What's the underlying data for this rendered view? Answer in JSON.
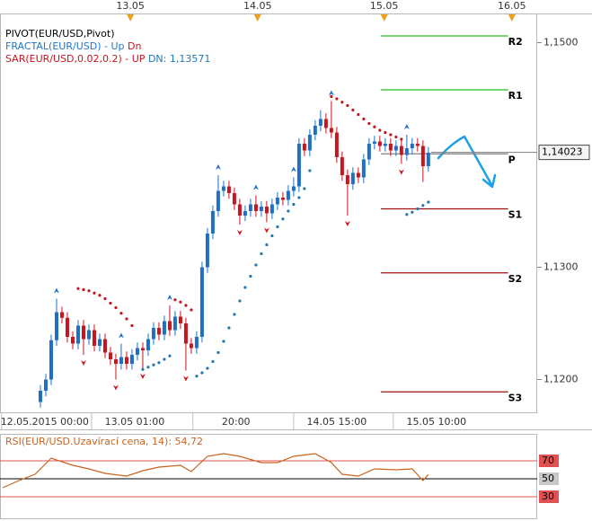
{
  "chart_data": {
    "type": "candlestick",
    "legend": {
      "pivot": "PIVOT(EUR/USD,Pivot)",
      "fractal": {
        "label": "FRACTAL(EUR/USD)  -",
        "up": "Up",
        "dn": "Dn"
      },
      "sar": {
        "label": "SAR(EUR/USD,0.02,0.2)  -",
        "up": "UP",
        "dn": "DN: 1,13571"
      }
    },
    "colors": {
      "up": "#1f6fc5",
      "down": "#c8141e",
      "sar_above": "#c8141e",
      "sar_below": "#1f78b4"
    },
    "xlim": [
      -7.5,
      92.2
    ],
    "ylim": [
      1.117,
      1.1526
    ],
    "yticks": [
      {
        "value": 1.15,
        "label": "1,1500"
      },
      {
        "value": 1.13,
        "label": "1,1300"
      },
      {
        "value": 1.12,
        "label": "1,1200"
      }
    ],
    "current_price": {
      "value": 1.14023,
      "label": "1,14023"
    },
    "top_labels": [
      {
        "value": 16.7,
        "label": "13.05"
      },
      {
        "value": 40.3,
        "label": "14.05"
      },
      {
        "value": 63.8,
        "label": "15.05"
      },
      {
        "value": 87.5,
        "label": "16.05"
      }
    ],
    "x_labels": [
      {
        "value": 0.8,
        "label": "12.05.2015 00:00"
      },
      {
        "value": 17.5,
        "label": "13.05 01:00"
      },
      {
        "value": 36.3,
        "label": "20:00"
      },
      {
        "value": 55,
        "label": "14.05 15:00"
      },
      {
        "value": 73.5,
        "label": "15.05 10:00"
      }
    ],
    "candles": [
      [
        1.118,
        1.1195,
        1.1175,
        1.119
      ],
      [
        1.119,
        1.1205,
        1.1185,
        1.12
      ],
      [
        1.12,
        1.124,
        1.1195,
        1.1235
      ],
      [
        1.1235,
        1.1272,
        1.123,
        1.126
      ],
      [
        1.126,
        1.1265,
        1.125,
        1.1255
      ],
      [
        1.1255,
        1.126,
        1.1233,
        1.1238
      ],
      [
        1.1238,
        1.1243,
        1.1227,
        1.1232
      ],
      [
        1.1232,
        1.1253,
        1.1227,
        1.1248
      ],
      [
        1.1248,
        1.1253,
        1.1222,
        1.1236
      ],
      [
        1.1236,
        1.1249,
        1.1231,
        1.1244
      ],
      [
        1.1244,
        1.1249,
        1.1225,
        1.123
      ],
      [
        1.123,
        1.1241,
        1.1225,
        1.1236
      ],
      [
        1.1236,
        1.1241,
        1.1219,
        1.1224
      ],
      [
        1.1224,
        1.1229,
        1.1213,
        1.1218
      ],
      [
        1.1218,
        1.1223,
        1.12,
        1.1214
      ],
      [
        1.1214,
        1.1232,
        1.1209,
        1.122
      ],
      [
        1.122,
        1.1225,
        1.1209,
        1.1214
      ],
      [
        1.1214,
        1.1227,
        1.1209,
        1.1222
      ],
      [
        1.1222,
        1.1233,
        1.1217,
        1.1228
      ],
      [
        1.1228,
        1.1233,
        1.121,
        1.1226
      ],
      [
        1.1226,
        1.1241,
        1.1221,
        1.1236
      ],
      [
        1.1236,
        1.1251,
        1.1231,
        1.1246
      ],
      [
        1.1246,
        1.1251,
        1.1235,
        1.124
      ],
      [
        1.124,
        1.1257,
        1.1235,
        1.1252
      ],
      [
        1.1252,
        1.1266,
        1.1239,
        1.1244
      ],
      [
        1.1244,
        1.1261,
        1.1239,
        1.1256
      ],
      [
        1.1256,
        1.1261,
        1.1245,
        1.125
      ],
      [
        1.125,
        1.1255,
        1.1208,
        1.1232
      ],
      [
        1.1232,
        1.1237,
        1.1223,
        1.1228
      ],
      [
        1.1228,
        1.1243,
        1.1223,
        1.1238
      ],
      [
        1.1238,
        1.1305,
        1.1233,
        1.13
      ],
      [
        1.13,
        1.1335,
        1.1295,
        1.133
      ],
      [
        1.133,
        1.1355,
        1.1325,
        1.135
      ],
      [
        1.135,
        1.1382,
        1.1345,
        1.1368
      ],
      [
        1.1368,
        1.1377,
        1.1363,
        1.1372
      ],
      [
        1.1372,
        1.1377,
        1.1361,
        1.1366
      ],
      [
        1.1366,
        1.1371,
        1.1351,
        1.1356
      ],
      [
        1.1356,
        1.1361,
        1.1338,
        1.1346
      ],
      [
        1.1346,
        1.1355,
        1.1341,
        1.135
      ],
      [
        1.135,
        1.1361,
        1.1345,
        1.1356
      ],
      [
        1.1356,
        1.1364,
        1.1345,
        1.135
      ],
      [
        1.135,
        1.1359,
        1.1345,
        1.1354
      ],
      [
        1.1354,
        1.1359,
        1.134,
        1.1348
      ],
      [
        1.1348,
        1.1361,
        1.1343,
        1.1356
      ],
      [
        1.1356,
        1.1367,
        1.1351,
        1.1362
      ],
      [
        1.1362,
        1.1367,
        1.1355,
        1.136
      ],
      [
        1.136,
        1.1373,
        1.1355,
        1.1368
      ],
      [
        1.1368,
        1.138,
        1.1363,
        1.1372
      ],
      [
        1.1372,
        1.1415,
        1.1367,
        1.141
      ],
      [
        1.141,
        1.1415,
        1.1399,
        1.1404
      ],
      [
        1.1404,
        1.1423,
        1.1399,
        1.1418
      ],
      [
        1.1418,
        1.1431,
        1.1413,
        1.1426
      ],
      [
        1.1426,
        1.144,
        1.1421,
        1.1432
      ],
      [
        1.1432,
        1.1437,
        1.1419,
        1.1424
      ],
      [
        1.1424,
        1.1448,
        1.1415,
        1.142
      ],
      [
        1.142,
        1.1425,
        1.1393,
        1.1398
      ],
      [
        1.1398,
        1.1403,
        1.1377,
        1.1382
      ],
      [
        1.1382,
        1.1387,
        1.1346,
        1.1374
      ],
      [
        1.1374,
        1.1389,
        1.1369,
        1.1384
      ],
      [
        1.1384,
        1.1389,
        1.1375,
        1.138
      ],
      [
        1.138,
        1.1401,
        1.1375,
        1.1396
      ],
      [
        1.1396,
        1.1415,
        1.1391,
        1.141
      ],
      [
        1.141,
        1.1417,
        1.1405,
        1.1412
      ],
      [
        1.1412,
        1.1417,
        1.1403,
        1.1408
      ],
      [
        1.1408,
        1.1415,
        1.1403,
        1.141
      ],
      [
        1.141,
        1.1415,
        1.1399,
        1.1404
      ],
      [
        1.1404,
        1.1413,
        1.1399,
        1.1408
      ],
      [
        1.1408,
        1.1413,
        1.1392,
        1.14
      ],
      [
        1.14,
        1.1418,
        1.1395,
        1.1406
      ],
      [
        1.1406,
        1.1415,
        1.1401,
        1.141
      ],
      [
        1.141,
        1.1415,
        1.1403,
        1.1408
      ],
      [
        1.1408,
        1.1413,
        1.1376,
        1.139
      ],
      [
        1.139,
        1.1407,
        1.1385,
        1.1402
      ]
    ],
    "sar": [
      null,
      null,
      null,
      null,
      null,
      null,
      null,
      1.1281,
      1.128,
      1.1279,
      1.1277,
      1.1275,
      1.1272,
      1.1268,
      1.1264,
      1.1259,
      1.1254,
      1.1248,
      null,
      1.1209,
      1.1211,
      1.1213,
      1.1215,
      1.1218,
      1.1221,
      1.1271,
      1.1269,
      1.1266,
      1.1262,
      1.1203,
      1.1206,
      1.121,
      1.1216,
      1.1224,
      1.1234,
      1.1246,
      1.1258,
      1.127,
      1.1282,
      1.1292,
      1.1302,
      1.1312,
      1.132,
      1.1328,
      1.1336,
      1.1343,
      1.135,
      1.1356,
      1.1362,
      1.137,
      1.1386,
      null,
      null,
      null,
      1.1452,
      1.145,
      1.1447,
      1.1444,
      1.144,
      1.1436,
      1.1432,
      1.1428,
      1.1425,
      1.1422,
      1.142,
      1.1418,
      1.1416,
      1.1414,
      1.1347,
      1.1349,
      1.1352,
      1.1355,
      1.1358
    ],
    "fractals": {
      "up": [
        3,
        15,
        24,
        33,
        40,
        47,
        54,
        68
      ],
      "dn": [
        8,
        14,
        19,
        27,
        37,
        42,
        57,
        67
      ]
    },
    "pivot": {
      "from": 63.2,
      "to": 86.8,
      "levels": [
        {
          "label": "R2",
          "value": 1.1506,
          "color": "#1fbf1f"
        },
        {
          "label": "R1",
          "value": 1.1458,
          "color": "#1fbf1f"
        },
        {
          "label": "P",
          "value": 1.1401,
          "color": "#808080"
        },
        {
          "label": "S1",
          "value": 1.1352,
          "color": "#a01010"
        },
        {
          "label": "S2",
          "value": 1.1295,
          "color": "#a01010"
        },
        {
          "label": "S3",
          "value": 1.1189,
          "color": "#a01010"
        }
      ]
    },
    "rsi": {
      "title": "RSI(EUR/USD.Uzavírací cena, 14): 54,72",
      "color": "#c8641e",
      "ylim": [
        5,
        100
      ],
      "yticks": [
        70,
        50,
        30
      ],
      "level_colors": [
        "#e05050",
        "#000000",
        "#e05050"
      ],
      "x": [
        -7,
        -4,
        -1,
        2,
        6,
        9,
        12,
        16,
        19,
        22,
        26,
        28,
        31,
        34,
        37,
        41,
        44,
        47,
        51,
        54,
        56,
        59,
        62,
        66,
        69,
        71,
        72
      ],
      "values": [
        40,
        48,
        55,
        73,
        65,
        61,
        56,
        53,
        59,
        63,
        65,
        58,
        75,
        78,
        75,
        68,
        68,
        75,
        78,
        68,
        55,
        53,
        61,
        60,
        61,
        48,
        54.72
      ]
    }
  }
}
